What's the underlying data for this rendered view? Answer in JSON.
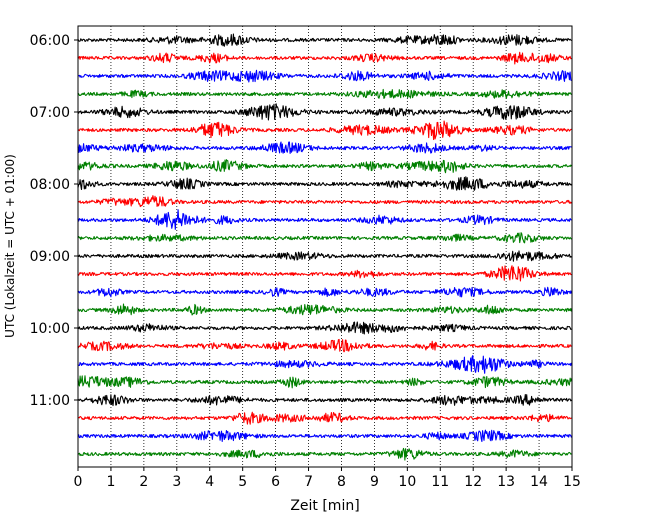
{
  "chart_data": {
    "type": "line",
    "title": "",
    "xlabel": "Zeit  [min]",
    "ylabel": "UTC (Lokalzeit = UTC + 01:00)",
    "xlim": [
      0,
      15
    ],
    "x_ticks": [
      "0",
      "1",
      "2",
      "3",
      "4",
      "5",
      "6",
      "7",
      "8",
      "9",
      "10",
      "11",
      "12",
      "13",
      "14",
      "15"
    ],
    "y_ticks": [
      {
        "label": "06:00",
        "trace": 0
      },
      {
        "label": "07:00",
        "trace": 4
      },
      {
        "label": "08:00",
        "trace": 8
      },
      {
        "label": "09:00",
        "trace": 12
      },
      {
        "label": "10:00",
        "trace": 16
      },
      {
        "label": "11:00",
        "trace": 20
      }
    ],
    "trace_minutes": 15,
    "trace_count": 24,
    "color_cycle": [
      "#000000",
      "#ff0000",
      "#0000ff",
      "#008000"
    ],
    "grid": "vertical-dotted",
    "legend": "none"
  }
}
